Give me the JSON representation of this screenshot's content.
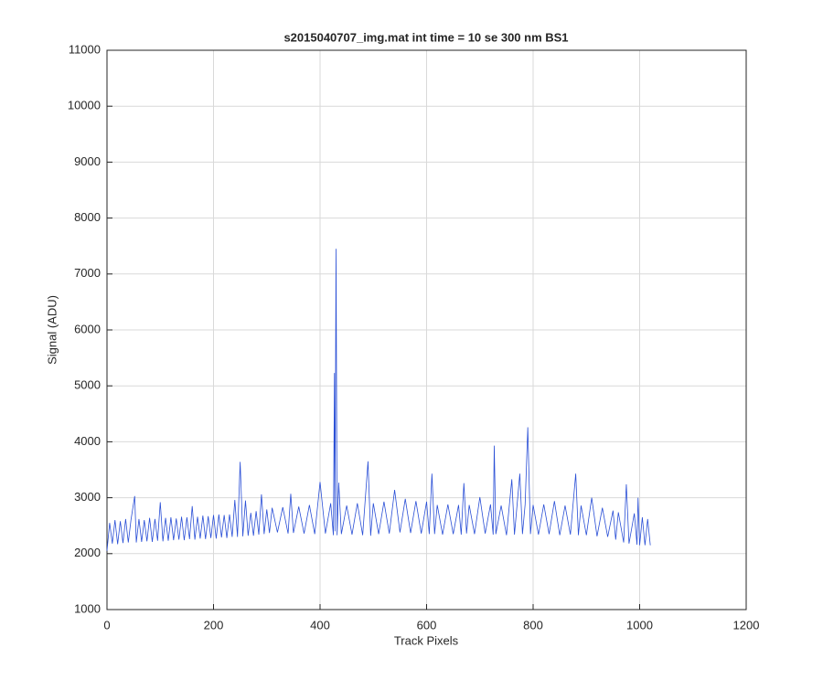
{
  "chart_data": {
    "type": "line",
    "title": "s2015040707_img.mat int time = 10 se  300 nm BS1",
    "x_label": "Track Pixels",
    "y_label": "Signal (ADU)",
    "xlim": [
      0,
      1200
    ],
    "xticks": [
      0,
      200,
      400,
      600,
      800,
      1000,
      1200
    ],
    "ylim": [
      1000,
      11000
    ],
    "yticks": [
      1000,
      2000,
      3000,
      4000,
      5000,
      6000,
      7000,
      8000,
      9000,
      10000,
      11000
    ],
    "grid": true,
    "series": [
      {
        "color": "#2a4fd6",
        "x": [
          0,
          5,
          10,
          15,
          20,
          25,
          30,
          35,
          40,
          45,
          52,
          55,
          60,
          65,
          70,
          75,
          80,
          85,
          90,
          95,
          100,
          105,
          110,
          115,
          120,
          125,
          130,
          135,
          140,
          145,
          150,
          155,
          160,
          165,
          170,
          175,
          180,
          185,
          190,
          195,
          200,
          205,
          210,
          215,
          220,
          225,
          230,
          235,
          240,
          245,
          250,
          255,
          260,
          265,
          270,
          275,
          280,
          285,
          290,
          295,
          300,
          305,
          310,
          320,
          330,
          340,
          345,
          350,
          360,
          370,
          380,
          390,
          400,
          410,
          420,
          425,
          427,
          428,
          430,
          432,
          435,
          440,
          450,
          460,
          470,
          480,
          490,
          495,
          500,
          510,
          520,
          530,
          540,
          550,
          560,
          570,
          580,
          590,
          600,
          605,
          610,
          615,
          620,
          630,
          640,
          650,
          660,
          665,
          670,
          675,
          680,
          690,
          700,
          710,
          720,
          725,
          727,
          730,
          740,
          750,
          760,
          765,
          775,
          780,
          785,
          790,
          795,
          800,
          810,
          820,
          830,
          840,
          850,
          860,
          870,
          880,
          885,
          890,
          900,
          910,
          920,
          930,
          940,
          950,
          955,
          960,
          970,
          975,
          980,
          990,
          995,
          997,
          1000,
          1005,
          1010,
          1015,
          1020
        ],
        "values": [
          2050,
          2550,
          2180,
          2600,
          2170,
          2580,
          2190,
          2620,
          2200,
          2600,
          3030,
          2200,
          2620,
          2210,
          2600,
          2220,
          2640,
          2210,
          2620,
          2230,
          2920,
          2220,
          2640,
          2230,
          2650,
          2240,
          2630,
          2250,
          2660,
          2240,
          2650,
          2260,
          2850,
          2250,
          2660,
          2270,
          2680,
          2260,
          2670,
          2280,
          2690,
          2270,
          2700,
          2290,
          2690,
          2280,
          2700,
          2300,
          2960,
          2300,
          3640,
          2310,
          2950,
          2320,
          2730,
          2320,
          2760,
          2340,
          3060,
          2350,
          2790,
          2370,
          2820,
          2380,
          2830,
          2360,
          3070,
          2370,
          2840,
          2360,
          2870,
          2350,
          3280,
          2360,
          2900,
          2330,
          5230,
          2400,
          7450,
          2330,
          3270,
          2350,
          2860,
          2340,
          2900,
          2330,
          3650,
          2320,
          2900,
          2350,
          2930,
          2360,
          3140,
          2380,
          2980,
          2370,
          2940,
          2360,
          2930,
          2350,
          3430,
          2350,
          2870,
          2340,
          2880,
          2350,
          2870,
          2340,
          3260,
          2360,
          2870,
          2350,
          3010,
          2360,
          2880,
          2340,
          3930,
          2350,
          2860,
          2330,
          3330,
          2340,
          3430,
          2350,
          2880,
          4260,
          2350,
          2870,
          2340,
          2880,
          2350,
          2940,
          2330,
          2860,
          2340,
          3430,
          2330,
          2860,
          2330,
          3000,
          2310,
          2820,
          2300,
          2770,
          2250,
          2740,
          2200,
          3240,
          2180,
          2720,
          2160,
          3000,
          2150,
          2650,
          2150,
          2620,
          2150
        ]
      }
    ]
  }
}
